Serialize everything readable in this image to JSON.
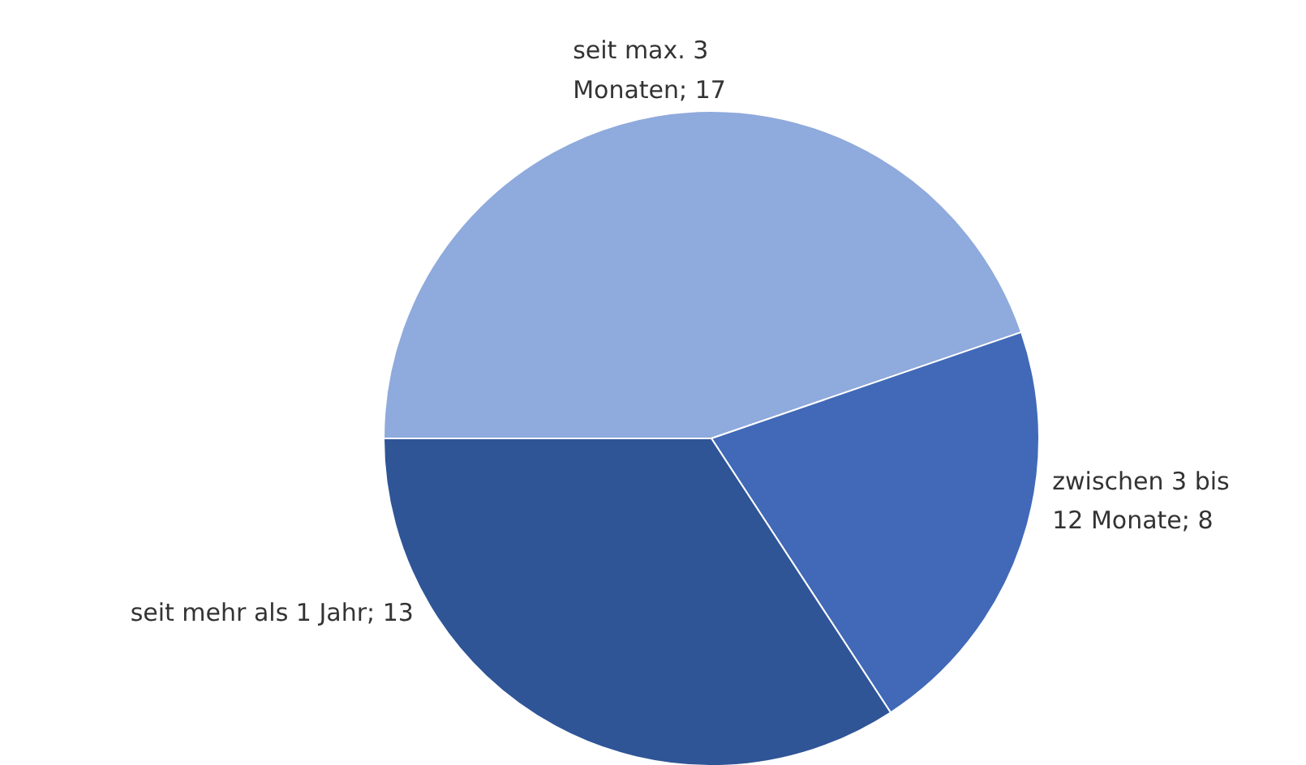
{
  "chart_data": {
    "type": "pie",
    "categories": [
      "seit max. 3 Monaten",
      "zwischen 3 bis 12 Monate",
      "seit mehr als 1 Jahr"
    ],
    "values": [
      17,
      8,
      13
    ],
    "value_labels": [
      "; 17",
      "; 8",
      "; 13"
    ],
    "colors": [
      "#8faadc",
      "#4169b8",
      "#2f5597"
    ],
    "data_labels": true,
    "legend": false
  }
}
